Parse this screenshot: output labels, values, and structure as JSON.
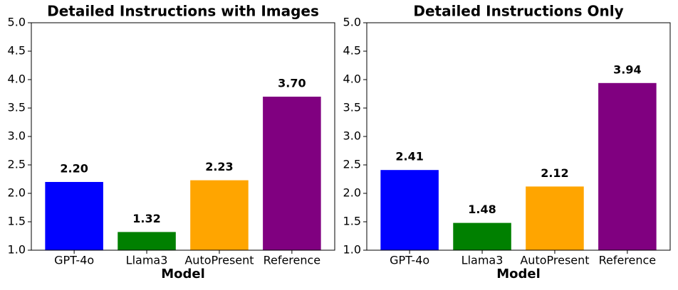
{
  "chart_data": [
    {
      "type": "bar",
      "title": "Detailed Instructions with Images",
      "x_label": "Model",
      "categories": [
        "GPT-4o",
        "Llama3",
        "AutoPresent",
        "Reference"
      ],
      "values": [
        2.2,
        1.32,
        2.23,
        3.7
      ],
      "value_labels": [
        "2.20",
        "1.32",
        "2.23",
        "3.70"
      ],
      "colors": [
        "#0000ff",
        "#008000",
        "#ffa500",
        "#800080"
      ],
      "ylim": [
        1,
        5
      ],
      "yticks": [
        {
          "value": 1,
          "label": "1.0"
        },
        1.5,
        {
          "value": 2,
          "label": "2.0"
        },
        2.5,
        {
          "value": 3,
          "label": "3.0"
        },
        3.5,
        {
          "value": 4,
          "label": "4.0"
        },
        4.5,
        {
          "value": 5,
          "label": "5.0"
        }
      ],
      "grid": false
    },
    {
      "type": "bar",
      "title": "Detailed Instructions Only",
      "x_label": "Model",
      "categories": [
        "GPT-4o",
        "Llama3",
        "AutoPresent",
        "Reference"
      ],
      "values": [
        2.41,
        1.48,
        2.12,
        3.94
      ],
      "value_labels": [
        "2.41",
        "1.48",
        "2.12",
        "3.94"
      ],
      "colors": [
        "#0000ff",
        "#008000",
        "#ffa500",
        "#800080"
      ],
      "ylim": [
        1,
        5
      ],
      "yticks": [
        {
          "value": 1,
          "label": "1.0"
        },
        1.5,
        {
          "value": 2,
          "label": "2.0"
        },
        2.5,
        {
          "value": 3,
          "label": "3.0"
        },
        3.5,
        {
          "value": 4,
          "label": "4.0"
        },
        4.5,
        {
          "value": 5,
          "label": "5.0"
        }
      ],
      "grid": false
    }
  ]
}
